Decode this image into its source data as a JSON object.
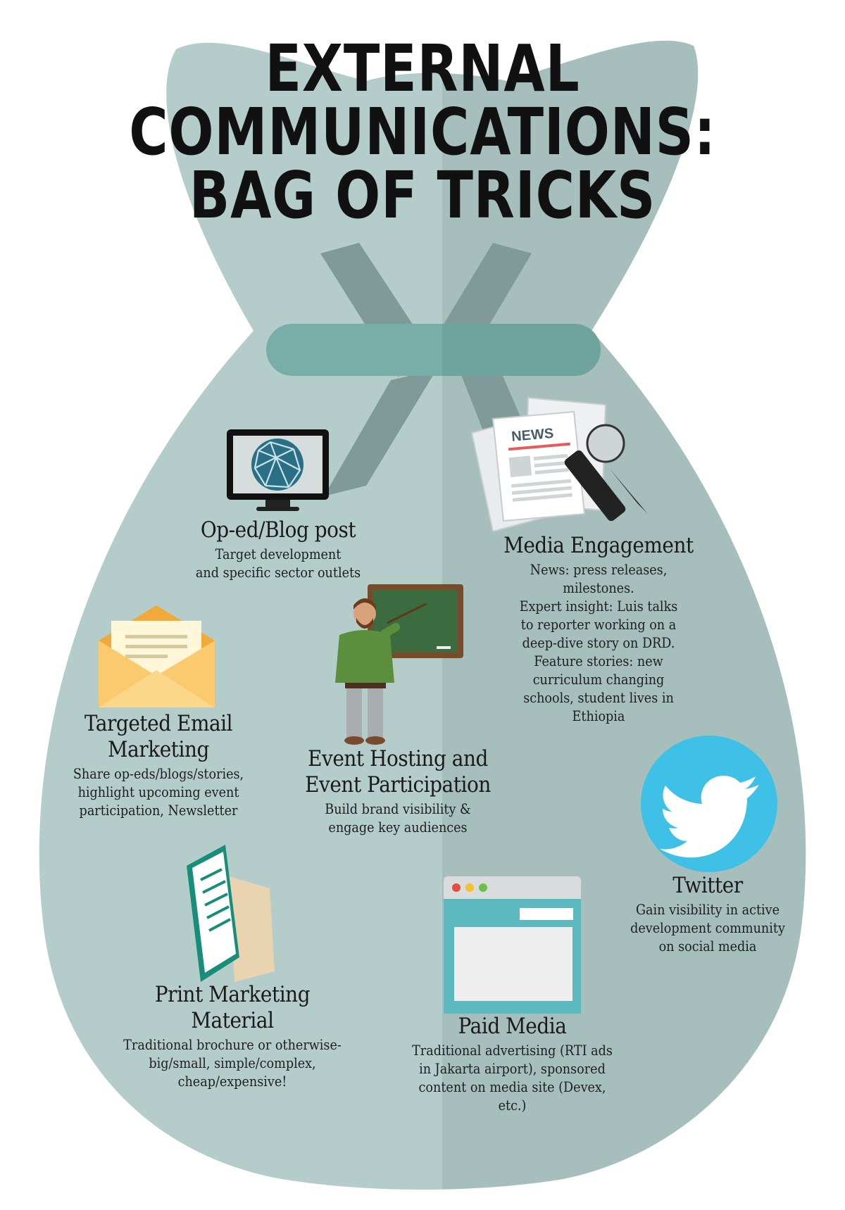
{
  "title": {
    "line1": "EXTERNAL",
    "line2": "COMMUNICATIONS:",
    "line3": "BAG OF TRICKS"
  },
  "colors": {
    "bag_left": "#b5cdca",
    "bag_right": "#a6bfbc",
    "tie": "#78ada8",
    "strap": "#7f9a98"
  },
  "items": [
    {
      "key": "oped",
      "icon": "monitor-globe-icon",
      "heading": "Op-ed/Blog post",
      "description": "Target development\nand specific sector outlets"
    },
    {
      "key": "media",
      "icon": "newspaper-microphone-icon",
      "news_label": "NEWS",
      "heading": "Media Engagement",
      "description": "News: press releases,\nmilestones.\nExpert insight: Luis talks\nto reporter working on a\ndeep-dive story on DRD.\nFeature stories: new\ncurriculum changing\nschools, student lives in\nEthiopia"
    },
    {
      "key": "email",
      "icon": "envelope-icon",
      "heading": "Targeted Email\nMarketing",
      "description": "Share op-eds/blogs/stories,\nhighlight upcoming event\nparticipation, Newsletter"
    },
    {
      "key": "event",
      "icon": "presenter-chalkboard-icon",
      "heading": "Event Hosting and\nEvent Participation",
      "description": "Build brand visibility &\nengage key audiences"
    },
    {
      "key": "twitter",
      "icon": "twitter-bird-icon",
      "heading": "Twitter",
      "description": "Gain visibility in active\ndevelopment community\non social media"
    },
    {
      "key": "print",
      "icon": "brochure-icon",
      "heading": "Print Marketing Material",
      "description": "Traditional brochure or otherwise-\nbig/small, simple/complex,\ncheap/expensive!"
    },
    {
      "key": "paid",
      "icon": "browser-window-icon",
      "heading": "Paid Media",
      "description": "Traditional advertising (RTI ads\nin Jakarta airport), sponsored\ncontent on media site (Devex,\netc.)"
    }
  ]
}
